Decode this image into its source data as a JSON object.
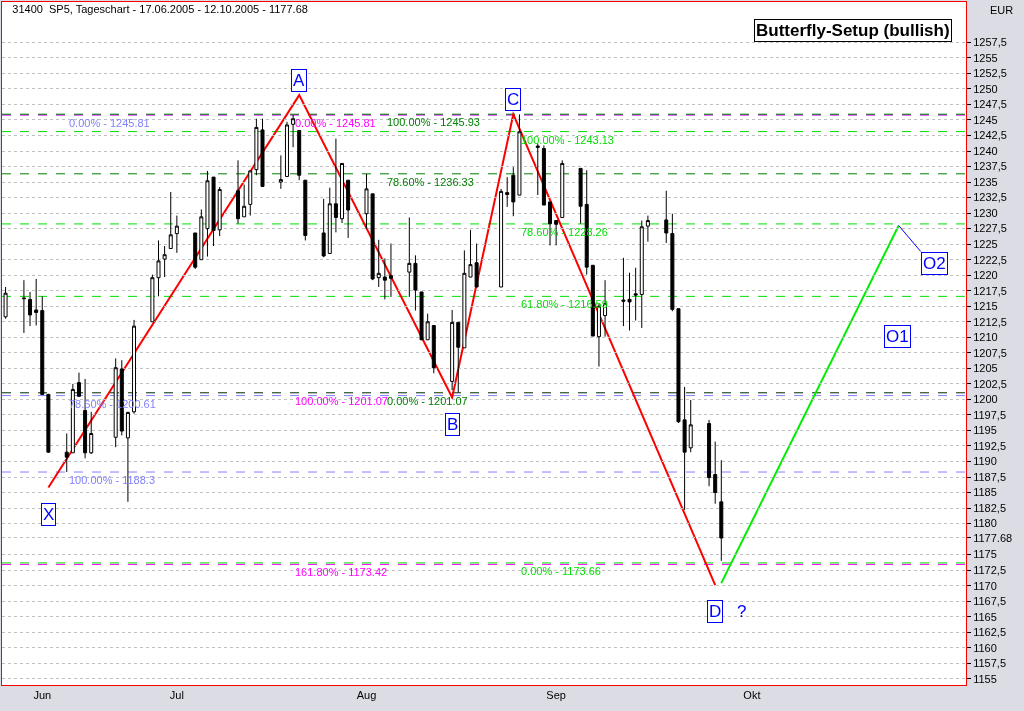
{
  "chart_data": {
    "type": "candlestick",
    "title": "31400  SP5, Tageschart - 17.06.2005 - 12.10.2005 - 1177.68",
    "ylabel": "EUR",
    "x": [
      "2005-06-17",
      "2005-06-20",
      "2005-06-21",
      "2005-06-22",
      "2005-06-23",
      "2005-06-24",
      "2005-06-27",
      "2005-06-28",
      "2005-06-29",
      "2005-06-30",
      "2005-07-01",
      "2005-07-05",
      "2005-07-06",
      "2005-07-07",
      "2005-07-08",
      "2005-07-11",
      "2005-07-12",
      "2005-07-13",
      "2005-07-14",
      "2005-07-15",
      "2005-07-18",
      "2005-07-19",
      "2005-07-20",
      "2005-07-21",
      "2005-07-22",
      "2005-07-25",
      "2005-07-26",
      "2005-07-27",
      "2005-07-28",
      "2005-07-29",
      "2005-08-01",
      "2005-08-02",
      "2005-08-03",
      "2005-08-04",
      "2005-08-05",
      "2005-08-08",
      "2005-08-09",
      "2005-08-10",
      "2005-08-11",
      "2005-08-12",
      "2005-08-15",
      "2005-08-16",
      "2005-08-17",
      "2005-08-18",
      "2005-08-19",
      "2005-08-22",
      "2005-08-23",
      "2005-08-24",
      "2005-08-25",
      "2005-08-26",
      "2005-08-29",
      "2005-08-30",
      "2005-08-31",
      "2005-09-01",
      "2005-09-02",
      "2005-09-06",
      "2005-09-07",
      "2005-09-08",
      "2005-09-09",
      "2005-09-12",
      "2005-09-13",
      "2005-09-14",
      "2005-09-15",
      "2005-09-16",
      "2005-09-19",
      "2005-09-20",
      "2005-09-21",
      "2005-09-22",
      "2005-09-23",
      "2005-09-26",
      "2005-09-27",
      "2005-09-28",
      "2005-09-29",
      "2005-09-30",
      "2005-10-03",
      "2005-10-04",
      "2005-10-05",
      "2005-10-06",
      "2005-10-07",
      "2005-10-10",
      "2005-10-11",
      "2005-10-12"
    ],
    "ohlc": [
      [
        1213.3,
        1218.1,
        1213.0,
        1217.1
      ],
      [
        1216.2,
        1219.2,
        1210.7,
        1216.3
      ],
      [
        1216.1,
        1217.3,
        1211.8,
        1213.6
      ],
      [
        1214.4,
        1219.4,
        1211.9,
        1214.0
      ],
      [
        1214.3,
        1216.6,
        1200.7,
        1200.8
      ],
      [
        1200.8,
        1200.9,
        1191.4,
        1191.5
      ],
      [
        1191.5,
        1194.5,
        1188.3,
        1190.7
      ],
      [
        1191.4,
        1202.5,
        1191.4,
        1201.6
      ],
      [
        1202.7,
        1204.3,
        1200.4,
        1200.5
      ],
      [
        1198.2,
        1203.3,
        1190.5,
        1191.4
      ],
      [
        1191.4,
        1198.0,
        1191.2,
        1194.5
      ],
      [
        1193.9,
        1206.6,
        1192.3,
        1205.1
      ],
      [
        1204.9,
        1206.3,
        1194.2,
        1194.9
      ],
      [
        1193.8,
        1198.0,
        1183.5,
        1197.9
      ],
      [
        1198.0,
        1212.8,
        1197.7,
        1211.8
      ],
      [
        1212.5,
        1220.1,
        1212.5,
        1219.6
      ],
      [
        1219.6,
        1225.6,
        1216.6,
        1222.3
      ],
      [
        1222.6,
        1224.7,
        1219.7,
        1223.3
      ],
      [
        1224.3,
        1233.4,
        1224.3,
        1226.5
      ],
      [
        1226.7,
        1229.6,
        1223.6,
        1227.9
      ],
      [
        1226.8,
        1226.8,
        1221.0,
        1221.3
      ],
      [
        1222.5,
        1230.6,
        1222.5,
        1229.4
      ],
      [
        1227.5,
        1236.8,
        1223.0,
        1235.2
      ],
      [
        1235.8,
        1235.8,
        1224.7,
        1227.2
      ],
      [
        1227.3,
        1234.2,
        1226.3,
        1233.8
      ],
      [
        1233.6,
        1238.5,
        1228.3,
        1229.1
      ],
      [
        1229.4,
        1234.6,
        1229.4,
        1231.1
      ],
      [
        1231.4,
        1236.8,
        1229.6,
        1236.8
      ],
      [
        1237.0,
        1245.2,
        1236.1,
        1243.8
      ],
      [
        1243.4,
        1245.2,
        1234.2,
        1234.3
      ],
      [
        1235.0,
        1239.3,
        1233.9,
        1235.4
      ],
      [
        1235.9,
        1244.7,
        1235.9,
        1244.2
      ],
      [
        1244.3,
        1245.8,
        1240.6,
        1245.2
      ],
      [
        1243.3,
        1243.3,
        1235.3,
        1236.1
      ],
      [
        1235.3,
        1235.3,
        1225.6,
        1226.4
      ],
      [
        1226.8,
        1232.3,
        1222.9,
        1223.1
      ],
      [
        1223.5,
        1234.1,
        1223.5,
        1231.5
      ],
      [
        1231.5,
        1242.0,
        1226.9,
        1229.3
      ],
      [
        1229.1,
        1238.0,
        1228.4,
        1238.0
      ],
      [
        1235.3,
        1235.3,
        1226.0,
        1230.5
      ],
      [
        1229.9,
        1236.3,
        1227.5,
        1233.9
      ],
      [
        1233.1,
        1233.1,
        1219.2,
        1219.4
      ],
      [
        1219.6,
        1225.7,
        1218.1,
        1220.3
      ],
      [
        1219.7,
        1222.7,
        1216.1,
        1219.2
      ],
      [
        1219.9,
        1225.1,
        1216.5,
        1219.5
      ],
      [
        1220.5,
        1229.3,
        1216.5,
        1221.9
      ],
      [
        1221.9,
        1223.2,
        1214.3,
        1217.6
      ],
      [
        1217.3,
        1217.3,
        1209.6,
        1209.6
      ],
      [
        1209.6,
        1213.8,
        1209.6,
        1212.5
      ],
      [
        1211.9,
        1211.9,
        1204.2,
        1205.1
      ],
      [
        1202.9,
        1214.4,
        1201.5,
        1212.4
      ],
      [
        1212.4,
        1212.4,
        1201.1,
        1208.4
      ],
      [
        1208.3,
        1224.0,
        1208.3,
        1220.3
      ],
      [
        1219.7,
        1227.3,
        1219.7,
        1221.7
      ],
      [
        1222.0,
        1225.1,
        1218.1,
        1218.1
      ],
      [
        1218.1,
        1233.9,
        1218.1,
        1233.5
      ],
      [
        1233.3,
        1235.8,
        1231.0,
        1233.0
      ],
      [
        1236.1,
        1237.4,
        1229.5,
        1231.8
      ],
      [
        1232.9,
        1245.9,
        1232.9,
        1243.1
      ],
      [
        1240.8,
        1241.2,
        1232.9,
        1240.6
      ],
      [
        1240.4,
        1240.9,
        1231.3,
        1231.3
      ],
      [
        1231.8,
        1231.8,
        1224.8,
        1228.3
      ],
      [
        1228.8,
        1228.8,
        1224.8,
        1228.2
      ],
      [
        1229.3,
        1238.5,
        1229.3,
        1238.0
      ],
      [
        1237.2,
        1237.2,
        1228.3,
        1231.1
      ],
      [
        1231.4,
        1236.9,
        1220.1,
        1221.3
      ],
      [
        1221.6,
        1221.6,
        1210.2,
        1210.2
      ],
      [
        1210.1,
        1215.4,
        1205.3,
        1215.0
      ],
      [
        1213.5,
        1219.2,
        1210.1,
        1215.4
      ],
      [
        1216.0,
        1222.8,
        1211.8,
        1215.8
      ],
      [
        1216.1,
        1220.4,
        1211.1,
        1215.7
      ],
      [
        1217.0,
        1221.2,
        1212.7,
        1216.8
      ],
      [
        1216.9,
        1228.8,
        1211.5,
        1227.8
      ],
      [
        1227.9,
        1229.6,
        1225.4,
        1228.8
      ],
      [
        1228.9,
        1233.6,
        1225.2,
        1226.8
      ],
      [
        1226.7,
        1229.9,
        1214.2,
        1214.5
      ],
      [
        1214.6,
        1214.6,
        1196.2,
        1196.4
      ],
      [
        1196.7,
        1202.0,
        1182.2,
        1191.5
      ],
      [
        1192.2,
        1199.9,
        1191.5,
        1195.9
      ],
      [
        1196.1,
        1196.7,
        1186.0,
        1187.4
      ],
      [
        1187.9,
        1193.2,
        1183.2,
        1185.0
      ],
      [
        1183.5,
        1190.2,
        1174.0,
        1177.68
      ]
    ],
    "series": [
      {
        "type": "line",
        "color": "#ff0000",
        "x": [
          "2005-06-24",
          "2005-08-04",
          "2005-08-29",
          "2005-09-08",
          "2005-10-11"
        ],
        "values": [
          1185.8,
          1249.0,
          1200.3,
          1245.9,
          1170.1
        ]
      },
      {
        "type": "line",
        "color": "#00ee00",
        "x": [
          "2005-10-12",
          "2005-11-10"
        ],
        "values": [
          1170.4,
          1228.0
        ]
      }
    ],
    "xlim": [
      "2005-06-16T10:00",
      "2005-11-21"
    ],
    "xticks": [
      {
        "value": "2005-06-23",
        "label": "Jun"
      },
      {
        "value": "2005-07-15",
        "label": "Jul"
      },
      {
        "value": "2005-08-15",
        "label": "Aug"
      },
      {
        "value": "2005-09-15",
        "label": "Sep"
      },
      {
        "value": "2005-10-17",
        "label": "Okt"
      }
    ],
    "ylim": [
      1154,
      1264
    ],
    "yticks": [
      1155,
      {
        "value": 1157.5,
        "label": "1157,5"
      },
      1160,
      {
        "value": 1162.5,
        "label": "1162,5"
      },
      1165,
      {
        "value": 1167.5,
        "label": "1167,5"
      },
      1170,
      {
        "value": 1172.5,
        "label": "1172,5"
      },
      1175,
      1177.68,
      1180,
      {
        "value": 1182.5,
        "label": "1182,5"
      },
      1185,
      {
        "value": 1187.5,
        "label": "1187,5"
      },
      1190,
      {
        "value": 1192.5,
        "label": "1192,5"
      },
      1195,
      {
        "value": 1197.5,
        "label": "1197,5"
      },
      1200,
      {
        "value": 1202.5,
        "label": "1202,5"
      },
      1205,
      {
        "value": 1207.5,
        "label": "1207,5"
      },
      1210,
      {
        "value": 1212.5,
        "label": "1212,5"
      },
      1215,
      {
        "value": 1217.5,
        "label": "1217,5"
      },
      1220,
      {
        "value": 1222.5,
        "label": "1222,5"
      },
      1225,
      {
        "value": 1227.5,
        "label": "1227,5"
      },
      1230,
      {
        "value": 1232.5,
        "label": "1232,5"
      },
      1235,
      {
        "value": 1237.5,
        "label": "1237,5"
      },
      1240,
      {
        "value": 1242.5,
        "label": "1242,5"
      },
      1245,
      {
        "value": 1247.5,
        "label": "1247,5"
      },
      1250,
      {
        "value": 1252.5,
        "label": "1252,5"
      },
      1255,
      {
        "value": 1257.5,
        "label": "1257,5"
      }
    ],
    "grid": "y",
    "ref_lines": [
      {
        "axis": "y",
        "value": 1245.81,
        "color": "#8080ff",
        "line_style": "dashed"
      },
      {
        "axis": "y",
        "value": 1200.61,
        "color": "#8080ff",
        "line_style": "dashed"
      },
      {
        "axis": "y",
        "value": 1188.3,
        "color": "#8080ff",
        "line_style": "dashed"
      },
      {
        "axis": "y",
        "value": 1245.81,
        "color": "#ff00ff",
        "line_style": "dashed"
      },
      {
        "axis": "y",
        "value": 1201.07,
        "color": "#ff00ff",
        "line_style": "dashed"
      },
      {
        "axis": "y",
        "value": 1173.42,
        "color": "#ff00ff",
        "line_style": "dashed"
      },
      {
        "axis": "y",
        "value": 1245.93,
        "color": "#008000",
        "line_style": "dashed"
      },
      {
        "axis": "y",
        "value": 1236.33,
        "color": "#008000",
        "line_style": "dashed"
      },
      {
        "axis": "y",
        "value": 1201.07,
        "color": "#008000",
        "line_style": "dashed"
      },
      {
        "axis": "y",
        "value": 1243.13,
        "color": "#00dd00",
        "line_style": "dashed"
      },
      {
        "axis": "y",
        "value": 1228.26,
        "color": "#00dd00",
        "line_style": "dashed"
      },
      {
        "axis": "y",
        "value": 1216.59,
        "color": "#00dd00",
        "line_style": "dashed"
      },
      {
        "axis": "y",
        "value": 1173.66,
        "color": "#00dd00",
        "line_style": "dashed"
      }
    ],
    "annotations": [
      "Butterfly-Setup (bullish)",
      {
        "text": "0.00% - 1245.81",
        "x": "2005-06-27",
        "y": 1245.81
      },
      {
        "text": "78.60% - 1200.61",
        "x": "2005-06-27",
        "y": 1200.61
      },
      {
        "text": "100.00% - 1188.3",
        "x": "2005-06-27",
        "y": 1188.3
      },
      {
        "text": "0.00% - 1245.81",
        "x": "2005-08-03",
        "y": 1245.81
      },
      {
        "text": "100.00% - 1201.07",
        "x": "2005-08-03",
        "y": 1201.07
      },
      {
        "text": "161.80% - 1173.42",
        "x": "2005-08-03",
        "y": 1173.42
      },
      {
        "text": "100.00% - 1245.93",
        "x": "2005-08-18",
        "y": 1245.93
      },
      {
        "text": "78.60% - 1236.33",
        "x": "2005-08-18",
        "y": 1236.33
      },
      {
        "text": "0.00% - 1201.07",
        "x": "2005-08-18",
        "y": 1201.07
      },
      {
        "text": "100.00% - 1243.13",
        "x": "2005-09-09",
        "y": 1243.13
      },
      {
        "text": "78.60% - 1228.26",
        "x": "2005-09-09",
        "y": 1228.26
      },
      {
        "text": "61.80% - 1216.59",
        "x": "2005-09-09",
        "y": 1216.59
      },
      {
        "text": "0.00% - 1173.66",
        "x": "2005-09-09",
        "y": 1173.66
      },
      {
        "text": "X",
        "x": "2005-06-24",
        "y": 1185.8
      },
      {
        "text": "A",
        "x": "2005-08-04",
        "y": 1249.0
      },
      {
        "text": "B",
        "x": "2005-08-29",
        "y": 1200.3
      },
      {
        "text": "C",
        "x": "2005-09-08",
        "y": 1245.9
      },
      {
        "text": "D",
        "x": "2005-10-11",
        "y": 1170.1
      },
      {
        "text": "?",
        "x": "2005-10-11",
        "y": 1170.1
      },
      {
        "text": "O1",
        "x": "2005-11-04",
        "y": 1216.1
      },
      {
        "text": "O2",
        "x": "2005-11-10",
        "y": 1228.0
      }
    ]
  }
}
